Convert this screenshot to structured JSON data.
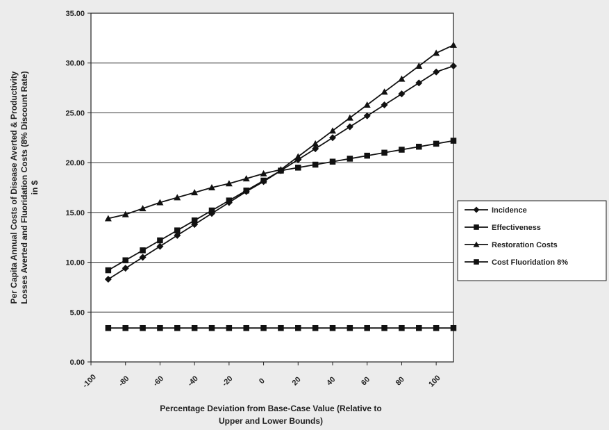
{
  "chart_data": {
    "type": "line",
    "title": "",
    "xlabel_lines": [
      "Percentage Deviation from Base-Case Value (Relative to",
      "Upper and Lower Bounds)"
    ],
    "ylabel_lines": [
      "Per Capita Annual Costs of Disease  Averted &  Productivity",
      "Losses Averted and Fluoridation Costs (8% Discount Rate)",
      "in $"
    ],
    "xlim": [
      -100,
      110
    ],
    "ylim": [
      0,
      35
    ],
    "x_ticks": [
      -100,
      -80,
      -60,
      -40,
      -20,
      0,
      20,
      40,
      60,
      80,
      100
    ],
    "x_tick_labels": [
      "-100",
      "-80",
      "-60",
      "-40",
      "-20",
      "0",
      "20",
      "40",
      "60",
      "80",
      "100"
    ],
    "y_ticks": [
      0,
      5,
      10,
      15,
      20,
      25,
      30,
      35
    ],
    "y_tick_labels": [
      "0.00",
      "5.00",
      "10.00",
      "15.00",
      "20.00",
      "25.00",
      "30.00",
      "35.00"
    ],
    "horizontal_gridlines": true,
    "legend_position": "right",
    "x": [
      -90,
      -80,
      -70,
      -60,
      -50,
      -40,
      -30,
      -20,
      -10,
      0,
      10,
      20,
      30,
      40,
      50,
      60,
      70,
      80,
      90,
      100,
      110
    ],
    "series": [
      {
        "name": "Incidence",
        "marker": "diamond",
        "values": [
          8.3,
          9.4,
          10.5,
          11.6,
          12.7,
          13.8,
          14.9,
          16.0,
          17.1,
          18.1,
          19.2,
          20.3,
          21.4,
          22.5,
          23.6,
          24.7,
          25.8,
          26.9,
          28.0,
          29.1,
          29.7
        ]
      },
      {
        "name": "Effectiveness",
        "marker": "square",
        "values": [
          9.2,
          10.2,
          11.2,
          12.2,
          13.2,
          14.2,
          15.2,
          16.2,
          17.2,
          18.2,
          19.2,
          19.5,
          19.8,
          20.1,
          20.4,
          20.7,
          21.0,
          21.3,
          21.6,
          21.9,
          22.2
        ]
      },
      {
        "name": "Restoration Costs",
        "marker": "triangle",
        "values": [
          14.4,
          14.8,
          15.4,
          16.0,
          16.5,
          17.0,
          17.5,
          17.9,
          18.4,
          18.9,
          19.3,
          20.6,
          21.9,
          23.2,
          24.5,
          25.8,
          27.1,
          28.4,
          29.7,
          31.0,
          31.8
        ]
      },
      {
        "name": "Cost Fluoridation 8%",
        "marker": "square",
        "values": [
          3.4,
          3.4,
          3.4,
          3.4,
          3.4,
          3.4,
          3.4,
          3.4,
          3.4,
          3.4,
          3.4,
          3.4,
          3.4,
          3.4,
          3.4,
          3.4,
          3.4,
          3.4,
          3.4,
          3.4,
          3.4
        ]
      }
    ]
  }
}
